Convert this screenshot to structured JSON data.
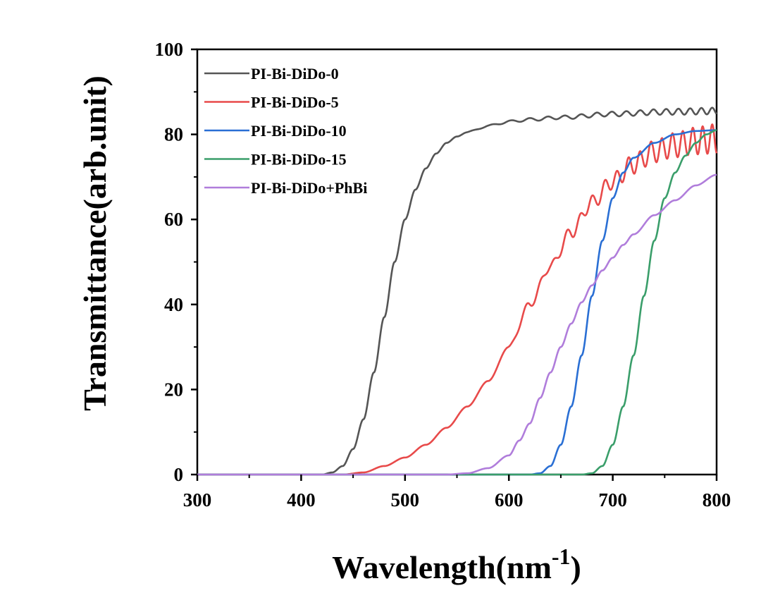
{
  "chart_data": {
    "type": "line",
    "title": "",
    "xlabel": "Wavelength(nm",
    "xlabel_sup": "-1",
    "xlabel_close": ")",
    "ylabel": "Transmittance(arb.unit)",
    "xlim": [
      300,
      800
    ],
    "ylim": [
      0,
      100
    ],
    "xticks": [
      300,
      400,
      500,
      600,
      700,
      800
    ],
    "yticks": [
      0,
      20,
      40,
      60,
      80,
      100
    ],
    "grid": false,
    "legend_position": "top-left",
    "series": [
      {
        "name": "PI-Bi-DiDo-0",
        "color": "#555555",
        "points": [
          [
            300,
            0
          ],
          [
            420,
            0
          ],
          [
            430,
            0.5
          ],
          [
            440,
            2
          ],
          [
            450,
            6
          ],
          [
            460,
            13
          ],
          [
            470,
            24
          ],
          [
            480,
            37
          ],
          [
            490,
            50
          ],
          [
            500,
            60
          ],
          [
            510,
            67
          ],
          [
            520,
            72
          ],
          [
            530,
            75.5
          ],
          [
            540,
            78
          ],
          [
            550,
            79.5
          ],
          [
            560,
            80.5
          ],
          [
            580,
            82
          ],
          [
            600,
            83
          ],
          [
            620,
            83.5
          ],
          [
            650,
            84
          ],
          [
            700,
            84.8
          ],
          [
            750,
            85.3
          ],
          [
            800,
            85.5
          ]
        ],
        "ripple": {
          "start": 560,
          "amp_start": 0.2,
          "amp_end": 0.8,
          "period_start": 20,
          "period_end": 10
        }
      },
      {
        "name": "PI-Bi-DiDo-5",
        "color": "#e84a4a",
        "points": [
          [
            300,
            0
          ],
          [
            440,
            0
          ],
          [
            460,
            0.5
          ],
          [
            480,
            2
          ],
          [
            500,
            4
          ],
          [
            520,
            7
          ],
          [
            540,
            11
          ],
          [
            560,
            16
          ],
          [
            580,
            22
          ],
          [
            600,
            30
          ],
          [
            620,
            40
          ],
          [
            640,
            49
          ],
          [
            660,
            57
          ],
          [
            680,
            64
          ],
          [
            700,
            69
          ],
          [
            720,
            73
          ],
          [
            740,
            76
          ],
          [
            760,
            77.5
          ],
          [
            780,
            78.5
          ],
          [
            800,
            79
          ]
        ],
        "ripple": {
          "start": 600,
          "amp_start": 0.4,
          "amp_end": 3.5,
          "period_start": 14,
          "period_end": 9
        }
      },
      {
        "name": "PI-Bi-DiDo-10",
        "color": "#2a6fd4",
        "points": [
          [
            300,
            0
          ],
          [
            620,
            0
          ],
          [
            630,
            0.3
          ],
          [
            640,
            2
          ],
          [
            650,
            7
          ],
          [
            660,
            16
          ],
          [
            670,
            28
          ],
          [
            680,
            42
          ],
          [
            690,
            55
          ],
          [
            700,
            65
          ],
          [
            710,
            71
          ],
          [
            720,
            74.5
          ],
          [
            740,
            78
          ],
          [
            760,
            80
          ],
          [
            780,
            80.8
          ],
          [
            800,
            81
          ]
        ]
      },
      {
        "name": "PI-Bi-DiDo-15",
        "color": "#3a9e6a",
        "points": [
          [
            300,
            0
          ],
          [
            670,
            0
          ],
          [
            680,
            0.3
          ],
          [
            690,
            2
          ],
          [
            700,
            7
          ],
          [
            710,
            16
          ],
          [
            720,
            28
          ],
          [
            730,
            42
          ],
          [
            740,
            55
          ],
          [
            750,
            65
          ],
          [
            760,
            71
          ],
          [
            770,
            75
          ],
          [
            780,
            78
          ],
          [
            790,
            80
          ],
          [
            800,
            81
          ]
        ]
      },
      {
        "name": "PI-Bi-DiDo+PhBi",
        "color": "#b07ddb",
        "points": [
          [
            300,
            0
          ],
          [
            540,
            0
          ],
          [
            560,
            0.3
          ],
          [
            580,
            1.5
          ],
          [
            600,
            4.5
          ],
          [
            610,
            8
          ],
          [
            620,
            12
          ],
          [
            630,
            18
          ],
          [
            640,
            24
          ],
          [
            650,
            30
          ],
          [
            660,
            35.5
          ],
          [
            670,
            40.5
          ],
          [
            680,
            44.5
          ],
          [
            690,
            48
          ],
          [
            700,
            51
          ],
          [
            710,
            54
          ],
          [
            720,
            56.5
          ],
          [
            740,
            61
          ],
          [
            760,
            64.5
          ],
          [
            780,
            68
          ],
          [
            800,
            70.5
          ]
        ]
      }
    ]
  }
}
